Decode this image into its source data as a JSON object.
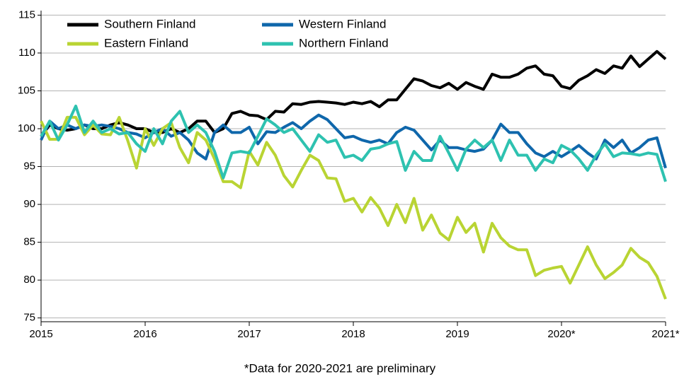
{
  "chart_data": {
    "type": "line",
    "note": "*Data for 2020-2021 are preliminary",
    "x": [
      2015,
      2015.083,
      2015.167,
      2015.25,
      2015.333,
      2015.417,
      2015.5,
      2015.583,
      2015.667,
      2015.75,
      2015.833,
      2015.917,
      2016,
      2016.083,
      2016.167,
      2016.25,
      2016.333,
      2016.417,
      2016.5,
      2016.583,
      2016.667,
      2016.75,
      2016.833,
      2016.917,
      2017,
      2017.083,
      2017.167,
      2017.25,
      2017.333,
      2017.417,
      2017.5,
      2017.583,
      2017.667,
      2017.75,
      2017.833,
      2017.917,
      2018,
      2018.083,
      2018.167,
      2018.25,
      2018.333,
      2018.417,
      2018.5,
      2018.583,
      2018.667,
      2018.75,
      2018.833,
      2018.917,
      2019,
      2019.083,
      2019.167,
      2019.25,
      2019.333,
      2019.417,
      2019.5,
      2019.583,
      2019.667,
      2019.75,
      2019.833,
      2019.917,
      2020,
      2020.083,
      2020.167,
      2020.25,
      2020.333,
      2020.417,
      2020.5,
      2020.583,
      2020.667,
      2020.75,
      2020.833,
      2020.917,
      2021
    ],
    "series": [
      {
        "name": "Southern Finland",
        "color": "#000000",
        "values": [
          99,
          100.5,
          100,
          99.8,
          100,
          100.5,
          100,
          100,
          100.5,
          100.8,
          100.5,
          100,
          100,
          99.5,
          99.5,
          100,
          99.5,
          100,
          101,
          101,
          99.5,
          100,
          102,
          102.3,
          101.8,
          101.7,
          101.2,
          102.3,
          102.2,
          103.3,
          103.2,
          103.5,
          103.6,
          103.5,
          103.4,
          103.2,
          103.5,
          103.3,
          103.6,
          102.9,
          103.8,
          103.8,
          105.2,
          106.6,
          106.3,
          105.7,
          105.4,
          106,
          105.2,
          106.1,
          105.6,
          105.2,
          107.2,
          106.8,
          106.8,
          107.2,
          108,
          108.3,
          107.2,
          107,
          105.6,
          105.3,
          106.4,
          107,
          107.8,
          107.3,
          108.3,
          108,
          109.6,
          108.2,
          109.2,
          110.2,
          109.2
        ]
      },
      {
        "name": "Western Finland",
        "color": "#0f67ab",
        "values": [
          98.5,
          101,
          100,
          100.5,
          100,
          100.5,
          100.3,
          100.5,
          100.3,
          100,
          99.5,
          99.3,
          98.8,
          99.5,
          100,
          99,
          99.5,
          98.5,
          96.8,
          96,
          99.5,
          100.5,
          99.5,
          99.5,
          100.2,
          98,
          99.6,
          99.5,
          100.2,
          100.8,
          100,
          101,
          101.8,
          101.2,
          100,
          98.8,
          99,
          98.5,
          98.2,
          98.5,
          98,
          99.5,
          100.2,
          99.8,
          98.5,
          97.2,
          98.5,
          97.5,
          97.5,
          97.2,
          97,
          97.3,
          98.5,
          100.6,
          99.5,
          99.5,
          98,
          96.8,
          96.3,
          97,
          96.3,
          97,
          97.8,
          96.8,
          96,
          98.5,
          97.5,
          98.5,
          96.8,
          97.5,
          98.5,
          98.8,
          94.8
        ]
      },
      {
        "name": "Eastern Finland",
        "color": "#b9d433",
        "values": [
          101,
          98.6,
          98.6,
          101.5,
          101.5,
          99.2,
          100.5,
          99.3,
          99.2,
          101.5,
          98.4,
          94.8,
          100,
          97.8,
          100,
          100.8,
          97.5,
          95.5,
          99.5,
          98.5,
          96,
          93,
          93,
          92.2,
          97,
          95.2,
          98.2,
          96.5,
          93.8,
          92.3,
          94.5,
          96.5,
          95.8,
          93.5,
          93.4,
          90.4,
          90.8,
          89,
          90.9,
          89.5,
          87.2,
          90,
          87.6,
          90.8,
          86.6,
          88.6,
          86.2,
          85.3,
          88.3,
          86.3,
          87.5,
          83.7,
          87.5,
          85.6,
          84.5,
          84,
          84,
          80.6,
          81.3,
          81.6,
          81.8,
          79.6,
          82,
          84.4,
          82,
          80.2,
          81,
          82,
          84.2,
          83,
          82.3,
          80.5,
          77.5
        ]
      },
      {
        "name": "Northern Finland",
        "color": "#2ec2b0",
        "values": [
          99,
          101,
          98.5,
          100.5,
          103,
          99.5,
          101,
          99.5,
          100,
          99.3,
          99.5,
          98,
          97,
          100,
          98,
          101,
          102.3,
          99.5,
          100.5,
          99.5,
          97,
          93.5,
          96.8,
          97,
          96.8,
          99,
          101.3,
          100.5,
          99.5,
          100,
          98.5,
          97,
          99.2,
          98.2,
          98.5,
          96.2,
          96.5,
          95.8,
          97.3,
          97.5,
          98,
          98.3,
          94.5,
          97,
          95.8,
          95.8,
          99,
          96.8,
          94.5,
          97.3,
          98.5,
          97.5,
          98.5,
          95.8,
          98.5,
          96.5,
          96.5,
          94.5,
          96,
          95.5,
          97.8,
          97.2,
          96,
          94.5,
          96.5,
          98,
          96.3,
          96.8,
          96.7,
          96.5,
          96.8,
          96.6,
          93
        ]
      }
    ],
    "xlim": [
      2015,
      2021
    ],
    "xticks": [
      2015,
      2016,
      2017,
      2018,
      2019,
      {
        "value": 2020,
        "label": "2020*"
      },
      {
        "value": 2021,
        "label": "2021*"
      }
    ],
    "ylim": [
      74.5,
      115.6
    ],
    "yticks": [
      75,
      80,
      85,
      90,
      95,
      100,
      105,
      110,
      115
    ],
    "grid": true,
    "legend": "upper left"
  }
}
